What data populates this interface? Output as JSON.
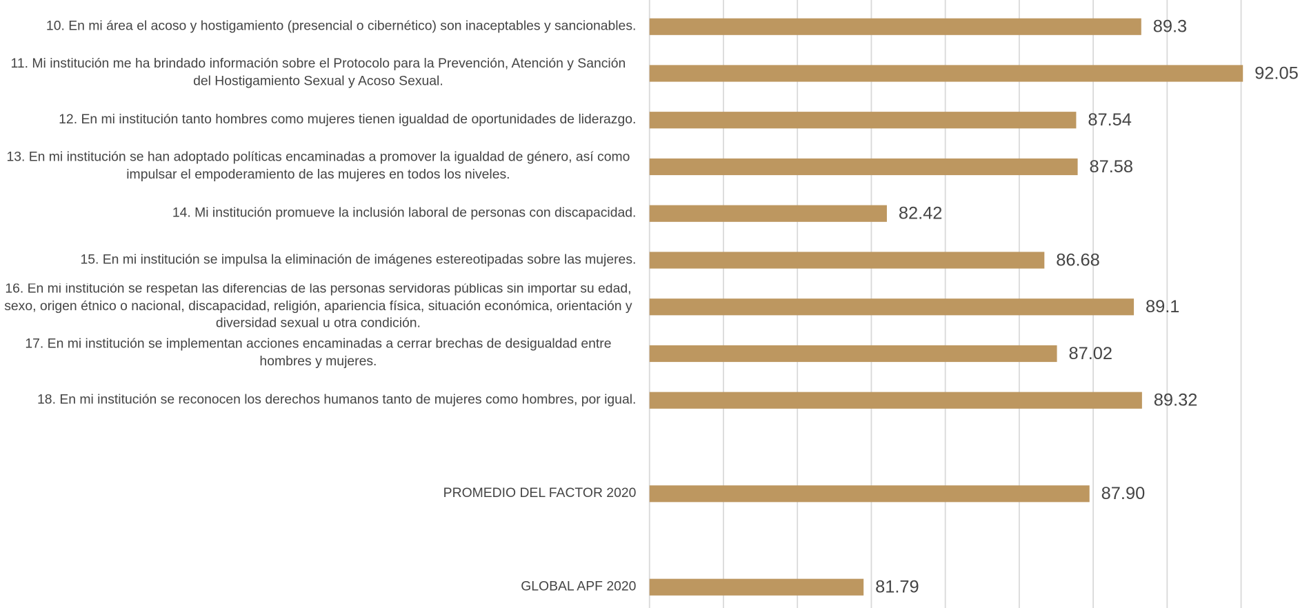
{
  "chart_data": {
    "type": "barh",
    "categories": [
      "10. En mi área el acoso y hostigamiento (presencial o cibernético) son inaceptables y sancionables.",
      "11. Mi institución me ha brindado información sobre el Protocolo para la Prevención, Atención y Sanción del Hostigamiento Sexual y Acoso Sexual.",
      "12. En mi institución tanto hombres como mujeres tienen igualdad de oportunidades de liderazgo.",
      "13. En mi institución se han adoptado políticas encaminadas a promover la igualdad de género, así como impulsar el empoderamiento de las mujeres en todos los niveles.",
      "14. Mi institución promueve la inclusión laboral de personas con discapacidad.",
      "15. En mi institución se impulsa la eliminación de imágenes estereotipadas sobre las mujeres.",
      "16. En mi institución se respetan las diferencias de las personas servidoras públicas sin importar su edad, sexo, origen étnico o nacional, discapacidad, religión, apariencia física, situación económica, orientación y diversidad sexual u otra condición.",
      "17. En mi institución se implementan acciones encaminadas a cerrar brechas de desigualdad entre hombres y mujeres.",
      "18. En mi institución se reconocen los derechos humanos tanto de mujeres como hombres, por igual.",
      null,
      "PROMEDIO DEL FACTOR   2020",
      null,
      "GLOBAL APF   2020"
    ],
    "values": [
      89.3,
      92.05,
      87.54,
      87.58,
      82.42,
      86.68,
      89.1,
      87.02,
      89.32,
      null,
      87.9,
      null,
      81.79
    ],
    "value_labels": [
      "89.3",
      "92.05",
      "87.54",
      "87.58",
      "82.42",
      "86.68",
      "89.1",
      "87.02",
      "89.32",
      null,
      "87.90",
      null,
      "81.79"
    ],
    "color": "#bd9760",
    "xlim": [
      76,
      92
    ],
    "xticks": [
      76,
      78,
      80,
      82,
      84,
      86,
      88,
      90,
      92
    ],
    "grid": true
  }
}
